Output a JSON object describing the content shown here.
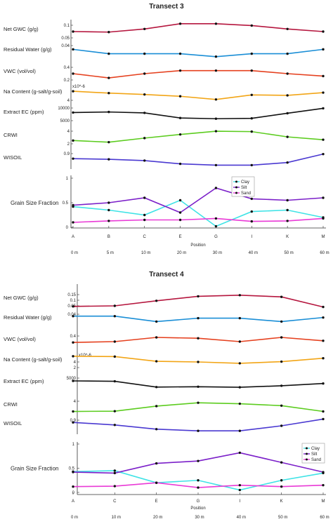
{
  "chart_data": [
    {
      "type": "line",
      "title": "Transect 3",
      "xlabel": "Position",
      "positions": [
        "A",
        "B",
        "C",
        "E",
        "G",
        "I",
        "K",
        "M"
      ],
      "distances": [
        "0 m",
        "5 m",
        "10 m",
        "20 m",
        "30 m",
        "40 m",
        "50 m",
        "60 m"
      ],
      "grid": false,
      "legend_placement": "right",
      "rows": [
        {
          "label": "Net GWC (g/g)",
          "color": "#b5163e",
          "ticks": [
            "0.1",
            "0.05"
          ],
          "ylim": [
            0.04,
            0.11
          ],
          "values": [
            0.075,
            0.073,
            0.085,
            0.105,
            0.105,
            0.098,
            0.085,
            0.075
          ]
        },
        {
          "label": "Residual Water (g/g)",
          "color": "#1a8ed6",
          "ticks": [
            "0.04"
          ],
          "ylim": [
            0.03,
            0.055
          ],
          "values": [
            0.046,
            0.04,
            0.04,
            0.04,
            0.036,
            0.04,
            0.04,
            0.046
          ]
        },
        {
          "label": "VWC (vol/vol)",
          "color": "#e5401e",
          "ticks": [
            "0.4",
            "0.2"
          ],
          "ylim": [
            0.15,
            0.45
          ],
          "values": [
            0.3,
            0.23,
            0.3,
            0.35,
            0.35,
            0.35,
            0.3,
            0.26
          ]
        },
        {
          "label": "Na Content (g-salt/g-soil)",
          "color": "#f2a516",
          "ticks": [
            "x10^-6",
            "4"
          ],
          "ylim": [
            1,
            5
          ],
          "values": [
            3.6,
            3.2,
            2.9,
            2.5,
            1.8,
            2.8,
            2.7,
            3.3
          ]
        },
        {
          "label": "Extract EC (ppm)",
          "color": "#111111",
          "ticks": [
            "10000",
            "5000"
          ],
          "ylim": [
            2000,
            12000
          ],
          "values": [
            8000,
            8300,
            7800,
            5000,
            4600,
            4800,
            7600,
            10300
          ]
        },
        {
          "label": "CRWI",
          "color": "#5ccc1f",
          "ticks": [
            "4",
            "2"
          ],
          "ylim": [
            0.5,
            5
          ],
          "values": [
            2.0,
            1.6,
            2.6,
            3.5,
            4.3,
            4.2,
            2.9,
            2.2
          ]
        },
        {
          "label": "WISOIL",
          "color": "#4a39d1",
          "ticks": [
            "0.9"
          ],
          "ylim": [
            0.82,
            0.96
          ],
          "values": [
            0.9,
            0.895,
            0.885,
            0.86,
            0.85,
            0.85,
            0.87,
            0.935
          ]
        }
      ],
      "grain": {
        "label": "Grain Size Fraction",
        "ylim": [
          0,
          1
        ],
        "yticks": [
          "1",
          "0.5",
          "0"
        ],
        "series": [
          {
            "name": "Clay",
            "color": "#3fe3e6",
            "values": [
              0.42,
              0.35,
              0.25,
              0.55,
              0.02,
              0.32,
              0.35,
              0.2
            ]
          },
          {
            "name": "Silt",
            "color": "#7b1fc9",
            "values": [
              0.45,
              0.5,
              0.6,
              0.3,
              0.8,
              0.58,
              0.55,
              0.6
            ]
          },
          {
            "name": "Sand",
            "color": "#e93ad6",
            "values": [
              0.1,
              0.13,
              0.15,
              0.15,
              0.18,
              0.12,
              0.13,
              0.18
            ]
          }
        ]
      }
    },
    {
      "type": "line",
      "title": "Transect 4",
      "xlabel": "Position",
      "positions": [
        "A",
        "C",
        "E",
        "G",
        "I",
        "K",
        "M"
      ],
      "distances": [
        "0 m",
        "10 m",
        "20 m",
        "30 m",
        "40 m",
        "50 m",
        "60 m"
      ],
      "grid": false,
      "legend_placement": "right",
      "rows": [
        {
          "label": "Net GWC (g/g)",
          "color": "#b5163e",
          "ticks": [
            "0.15",
            "0.1",
            "0.05"
          ],
          "ylim": [
            0.03,
            0.18
          ],
          "values": [
            0.05,
            0.055,
            0.1,
            0.14,
            0.15,
            0.135,
            0.045
          ]
        },
        {
          "label": "Residual Water (g/g)",
          "color": "#1a8ed6",
          "ticks": [
            "0.04"
          ],
          "ylim": [
            0.03,
            0.055
          ],
          "values": [
            0.048,
            0.048,
            0.04,
            0.045,
            0.045,
            0.04,
            0.046
          ]
        },
        {
          "label": "VWC (vol/vol)",
          "color": "#e5401e",
          "ticks": [
            "0.4"
          ],
          "ylim": [
            0.1,
            0.5
          ],
          "values": [
            0.28,
            0.3,
            0.4,
            0.38,
            0.3,
            0.4,
            0.32
          ]
        },
        {
          "label": "Na Content (g-salt/g-soil)",
          "color": "#f2a516",
          "ticks": [
            "x10^-6",
            "4",
            "2"
          ],
          "ylim": [
            0,
            5
          ],
          "values": [
            4.2,
            4.1,
            2.7,
            2.5,
            2.1,
            2.6,
            3.6
          ]
        },
        {
          "label": "Extract EC (ppm)",
          "color": "#111111",
          "ticks": [
            "5000"
          ],
          "ylim": [
            1000,
            10000
          ],
          "values": [
            7000,
            6800,
            3700,
            3900,
            3600,
            4400,
            5600
          ]
        },
        {
          "label": "CRWI",
          "color": "#5ccc1f",
          "ticks": [
            "4"
          ],
          "ylim": [
            2,
            5.5
          ],
          "values": [
            2.8,
            2.85,
            3.9,
            4.6,
            4.4,
            4.0,
            2.8
          ]
        },
        {
          "label": "WISOIL",
          "color": "#4a39d1",
          "ticks": [
            "0.9"
          ],
          "ylim": [
            0.83,
            0.93
          ],
          "values": [
            0.9,
            0.885,
            0.86,
            0.85,
            0.85,
            0.88,
            0.92
          ]
        }
      ],
      "grain": {
        "label": "Grain Size Fraction",
        "ylim": [
          0,
          1
        ],
        "yticks": [
          "1",
          "0.5",
          "0"
        ],
        "series": [
          {
            "name": "Clay",
            "color": "#3fe3e6",
            "values": [
              0.43,
              0.45,
              0.2,
              0.25,
              0.05,
              0.25,
              0.4
            ]
          },
          {
            "name": "Silt",
            "color": "#7b1fc9",
            "values": [
              0.42,
              0.4,
              0.6,
              0.65,
              0.82,
              0.62,
              0.42
            ]
          },
          {
            "name": "Sand",
            "color": "#e93ad6",
            "values": [
              0.12,
              0.13,
              0.2,
              0.1,
              0.15,
              0.12,
              0.15
            ]
          }
        ]
      }
    }
  ]
}
